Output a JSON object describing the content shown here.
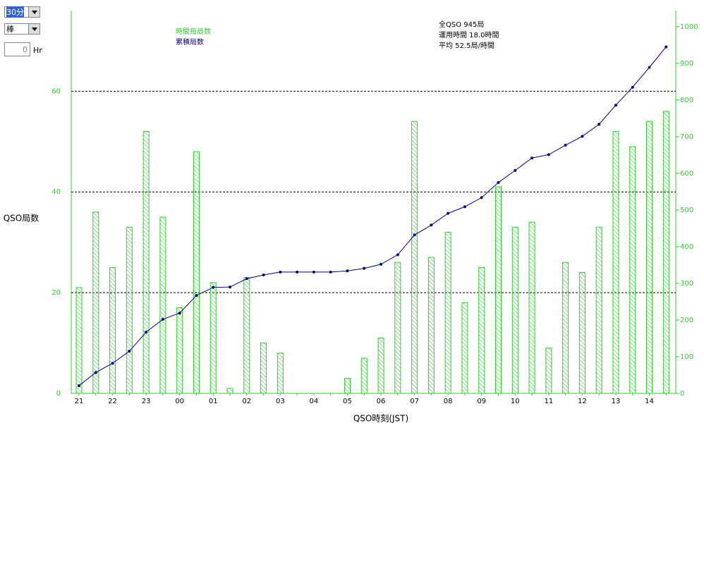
{
  "controls": {
    "interval": "30分",
    "style": "棒",
    "spin_value": "0",
    "spin_unit": "Hr"
  },
  "chart_data": {
    "type": "combo",
    "y_label": "QSO局数",
    "x_label": "QSO時刻(JST)",
    "stats": [
      "全QSO 945局",
      "運用時間 18.0時間",
      "平均 52.5局/時間"
    ],
    "categories": [
      "21",
      null,
      "22",
      null,
      "23",
      null,
      "00",
      null,
      "01",
      null,
      "02",
      null,
      "03",
      null,
      "04",
      null,
      "05",
      null,
      "06",
      null,
      "07",
      null,
      "08",
      null,
      "09",
      null,
      "10",
      null,
      "11",
      null,
      "12",
      null,
      "13",
      null,
      "14",
      null
    ],
    "series": [
      {
        "name": "時間毎局数",
        "type": "bar",
        "color": "#33cc33",
        "values": [
          21,
          36,
          25,
          33,
          52,
          35,
          17,
          48,
          22,
          1,
          23,
          10,
          8,
          0,
          0,
          0,
          3,
          7,
          11,
          26,
          54,
          27,
          32,
          18,
          25,
          41,
          33,
          34,
          9,
          26,
          24,
          33,
          52,
          49,
          54,
          56
        ]
      },
      {
        "name": "累積局数",
        "type": "line",
        "color": "#000080",
        "axis": "y2",
        "values": [
          21,
          57,
          82,
          115,
          167,
          202,
          219,
          267,
          289,
          290,
          313,
          323,
          331,
          331,
          331,
          331,
          334,
          341,
          352,
          378,
          432,
          459,
          491,
          509,
          534,
          575,
          608,
          642,
          651,
          677,
          701,
          734,
          786,
          835,
          889,
          945
        ]
      }
    ],
    "ylim": [
      0,
      76
    ],
    "yticks": [
      0,
      20,
      40,
      60
    ],
    "y2lim": [
      0,
      1044
    ],
    "y2ticks": [
      0,
      100,
      200,
      300,
      400,
      500,
      600,
      700,
      800,
      900,
      1000
    ],
    "grid": true
  }
}
